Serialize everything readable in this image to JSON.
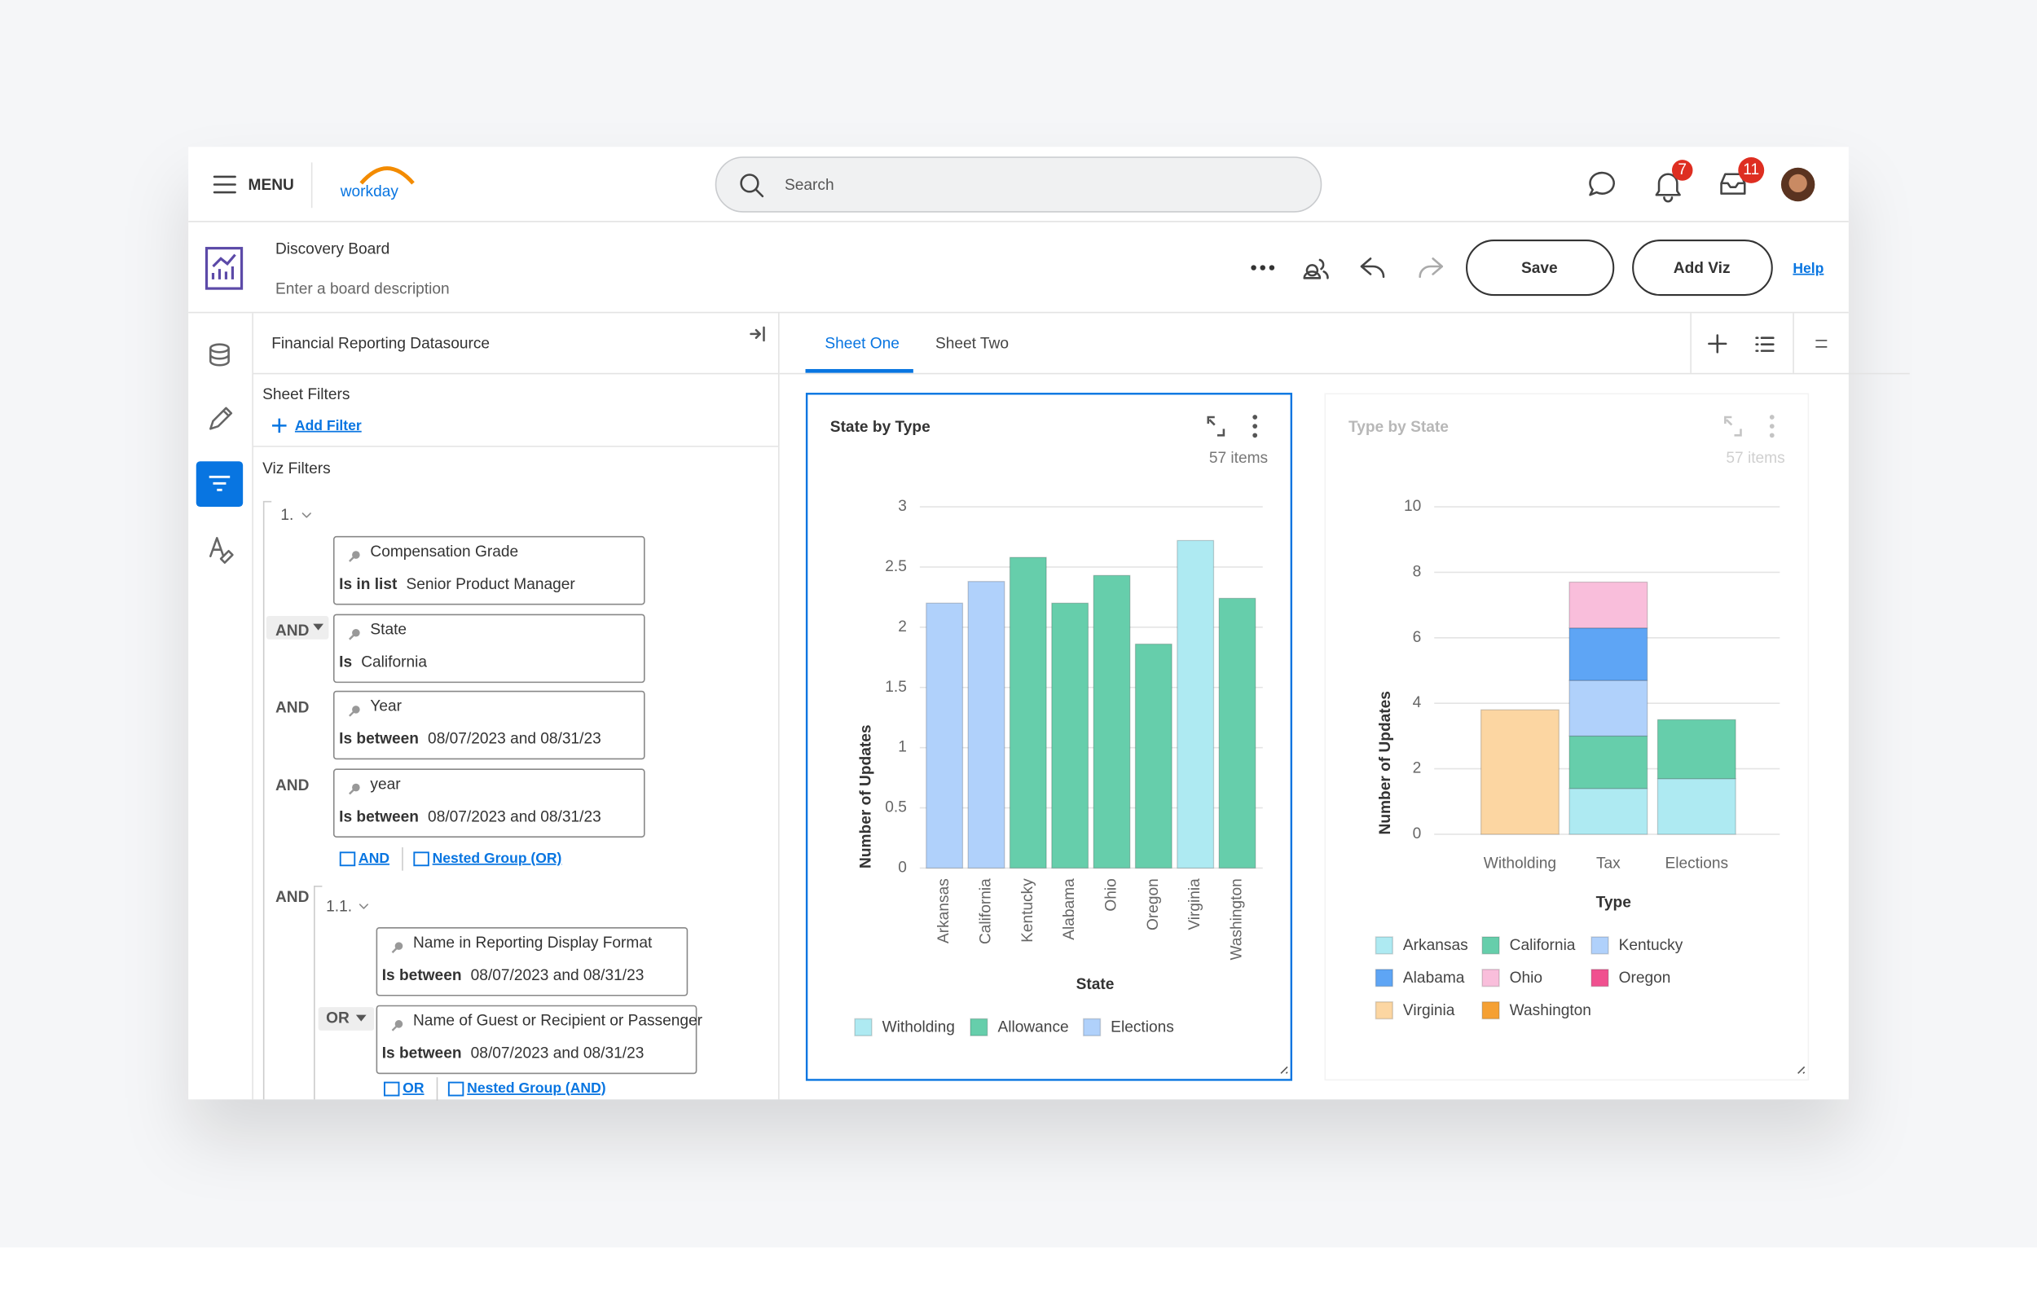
{
  "nav": {
    "menu": "MENU",
    "logo": "workday",
    "search": "Search",
    "notifications": 7,
    "inbox": 11
  },
  "board": {
    "title": "Discovery Board",
    "description": "Enter a board description",
    "save": "Save",
    "add_viz": "Add Viz",
    "help": "Help"
  },
  "panel": {
    "title": "Financial Reporting Datasource",
    "sheet_filters": "Sheet Filters",
    "add_filter": "Add Filter",
    "viz_filters": "Viz Filters",
    "group": {
      "label": "1.",
      "filters": [
        {
          "field": "Compensation Grade",
          "operator": "Is in list",
          "value": "Senior Product Manager"
        },
        {
          "connector": "AND",
          "field": "State",
          "operator": "Is",
          "value": "California"
        },
        {
          "connector": "AND",
          "field": "Year",
          "operator": "Is between",
          "value": "08/07/2023 and 08/31/23"
        },
        {
          "connector": "AND",
          "field": "year",
          "operator": "Is between",
          "value": "08/07/2023 and 08/31/23"
        }
      ],
      "actions": [
        "AND",
        "Nested Group (OR)"
      ],
      "subgroup": {
        "connector": "AND",
        "label": "1.1.",
        "filters": [
          {
            "field": "Name in Reporting Display Format",
            "operator": "Is between",
            "value": "08/07/2023 and 08/31/23"
          },
          {
            "connector": "OR",
            "field": "Name of Guest or Recipient or Passenger",
            "operator": "Is between",
            "value": "08/07/2023 and 08/31/23"
          }
        ],
        "actions": [
          "OR",
          "Nested Group (AND)"
        ]
      }
    }
  },
  "tabs": [
    "Sheet One",
    "Sheet Two"
  ],
  "chart_data": [
    {
      "type": "bar",
      "stacked": false,
      "title": "State by Type",
      "items": "57 items",
      "x_label": "State",
      "y_label": "Number of Updates",
      "categories": [
        "Arkansas",
        "California",
        "Kentucky",
        "Alabama",
        "Ohio",
        "Oregon",
        "Virginia",
        "Washington"
      ],
      "series": [
        {
          "name": "Witholding",
          "color": "#aeeaf2",
          "values": [
            null,
            null,
            null,
            null,
            null,
            null,
            2.72,
            null
          ]
        },
        {
          "name": "Allowance",
          "color": "#66ceab",
          "values": [
            null,
            null,
            2.58,
            2.2,
            2.43,
            1.86,
            null,
            2.24
          ]
        },
        {
          "name": "Elections",
          "color": "#b0d1fb",
          "values": [
            2.2,
            2.38,
            null,
            null,
            null,
            null,
            null,
            null
          ]
        }
      ],
      "ylim": [
        0,
        3
      ],
      "yticks": [
        0,
        0.5,
        1,
        1.5,
        2,
        2.5,
        3
      ],
      "grid": true
    },
    {
      "type": "bar",
      "stacked": true,
      "title": "Type by State",
      "items": "57 items",
      "x_label": "Type",
      "y_label": "Number of Updates",
      "categories": [
        "Witholding",
        "Tax",
        "Elections"
      ],
      "series": [
        {
          "name": "Arkansas",
          "color": "#aeeaf2",
          "values": [
            null,
            1.4,
            1.7
          ]
        },
        {
          "name": "California",
          "color": "#66ceab",
          "values": [
            null,
            1.6,
            1.8
          ]
        },
        {
          "name": "Kentucky",
          "color": "#b0d1fb",
          "values": [
            null,
            1.7,
            null
          ]
        },
        {
          "name": "Alabama",
          "color": "#5ea5f5",
          "values": [
            null,
            1.6,
            null
          ]
        },
        {
          "name": "Ohio",
          "color": "#f9bedb",
          "values": [
            null,
            1.4,
            null
          ]
        },
        {
          "name": "Oregon",
          "color": "#f0508f",
          "values": [
            null,
            null,
            null
          ]
        },
        {
          "name": "Virginia",
          "color": "#fcd6a2",
          "values": [
            3.8,
            null,
            null
          ]
        },
        {
          "name": "Washington",
          "color": "#f5a033",
          "values": [
            null,
            null,
            null
          ]
        }
      ],
      "ylim": [
        0,
        10
      ],
      "yticks": [
        0,
        2,
        4,
        6,
        8,
        10
      ],
      "grid": true
    }
  ]
}
